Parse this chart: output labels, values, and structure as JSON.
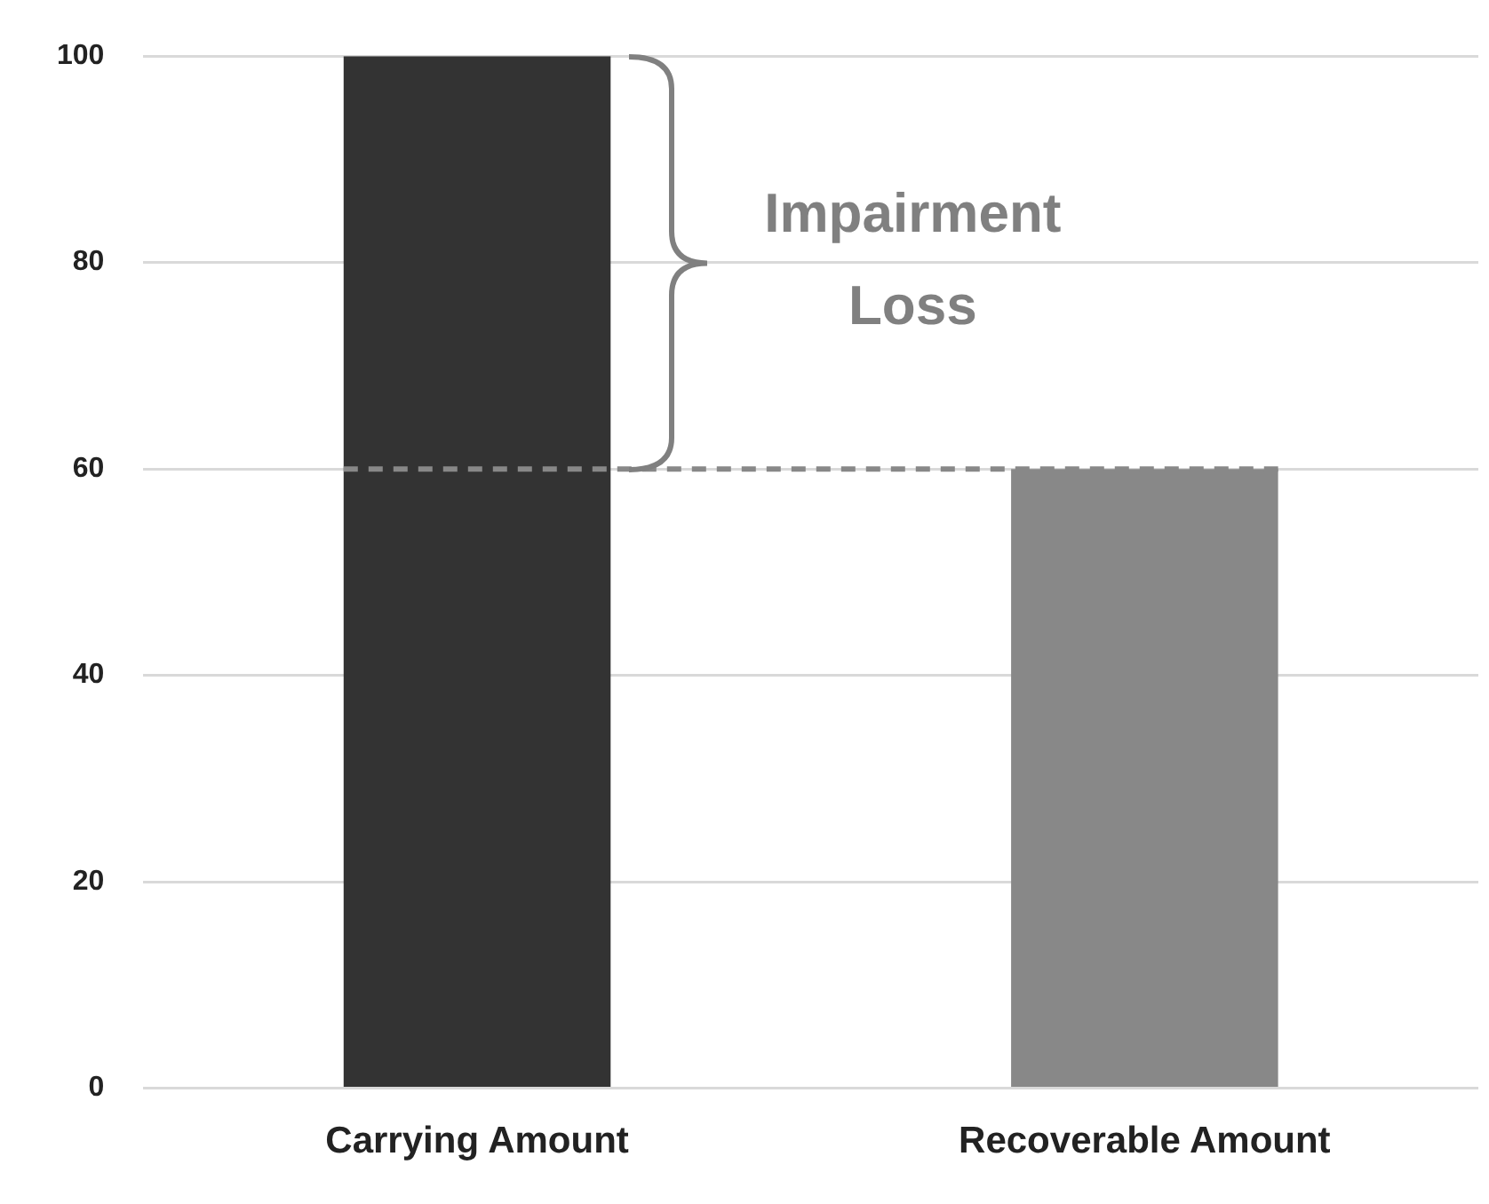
{
  "chart_data": {
    "type": "bar",
    "categories": [
      "Carrying Amount",
      "Recoverable Amount"
    ],
    "values": [
      100,
      60
    ],
    "colors": [
      "#333333",
      "#888888"
    ],
    "ylim": [
      0,
      100
    ],
    "yticks": [
      0,
      20,
      40,
      60,
      80,
      100
    ],
    "grid": "y",
    "legend": false,
    "ref_lines": [
      {
        "axis": "y",
        "value": 60,
        "line_style": "dashed",
        "color": "#888888"
      }
    ],
    "annotations": [
      "Impairment Loss"
    ]
  }
}
